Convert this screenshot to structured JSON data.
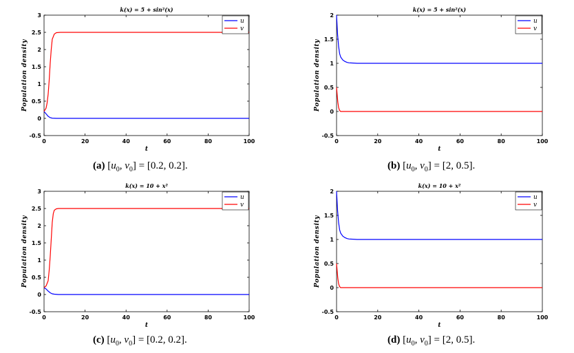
{
  "figure": {
    "captions": [
      {
        "letter": "(a)",
        "u_label": "u",
        "v_label": "v",
        "sub": "0",
        "lhs_rest": "] = [0.2, 0.2]."
      },
      {
        "letter": "(b)",
        "u_label": "u",
        "v_label": "v",
        "sub": "0",
        "lhs_rest": "] = [2, 0.5]."
      },
      {
        "letter": "(c)",
        "u_label": "u",
        "v_label": "v",
        "sub": "0",
        "lhs_rest": "] = [0.2, 0.2]."
      },
      {
        "letter": "(d)",
        "u_label": "u",
        "v_label": "v",
        "sub": "0",
        "lhs_rest": "] = [2, 0.5]."
      }
    ]
  },
  "colors": {
    "u": "#0000ff",
    "v": "#ff0000",
    "axis": "#000000"
  },
  "chart_data": [
    {
      "type": "line",
      "title": "k(x) = 5 + sin²(x)",
      "xlabel": "t",
      "ylabel": "Population density",
      "xlim": [
        0,
        100
      ],
      "ylim": [
        -0.5,
        3
      ],
      "xticks": [
        "0",
        "20",
        "40",
        "60",
        "80",
        "100"
      ],
      "yticks": [
        "-0.5",
        "0",
        "0.5",
        "1",
        "1.5",
        "2",
        "2.5",
        "3"
      ],
      "legend": {
        "position": "top-right",
        "entries": [
          "u",
          "v"
        ]
      },
      "series": [
        {
          "name": "u",
          "x": [
            0,
            1,
            2,
            3,
            4,
            6,
            10,
            50,
            100
          ],
          "y": [
            0.2,
            0.13,
            0.06,
            0.02,
            0.005,
            0.0,
            0.0,
            0.0,
            0.0
          ]
        },
        {
          "name": "v",
          "x": [
            0,
            1,
            1.5,
            2,
            2.5,
            3,
            3.5,
            4,
            5,
            6,
            8,
            10,
            50,
            100
          ],
          "y": [
            0.2,
            0.3,
            0.45,
            0.7,
            1.1,
            1.6,
            2.0,
            2.3,
            2.45,
            2.49,
            2.5,
            2.5,
            2.5,
            2.5
          ]
        }
      ]
    },
    {
      "type": "line",
      "title": "k(x) = 5 + sin²(x)",
      "xlabel": "t",
      "ylabel": "Population density",
      "xlim": [
        0,
        100
      ],
      "ylim": [
        -0.5,
        2
      ],
      "xticks": [
        "0",
        "20",
        "40",
        "60",
        "80",
        "100"
      ],
      "yticks": [
        "-0.5",
        "0",
        "0.5",
        "1",
        "1.5",
        "2"
      ],
      "legend": {
        "position": "top-right",
        "entries": [
          "u",
          "v"
        ]
      },
      "series": [
        {
          "name": "u",
          "x": [
            0,
            0.5,
            1,
            1.5,
            2,
            3,
            4,
            5,
            6,
            8,
            10,
            15,
            20,
            50,
            100
          ],
          "y": [
            2,
            1.6,
            1.35,
            1.2,
            1.13,
            1.07,
            1.04,
            1.02,
            1.01,
            1.005,
            1.0,
            1.0,
            1.0,
            1.0,
            1.0
          ]
        },
        {
          "name": "v",
          "x": [
            0,
            0.3,
            0.6,
            1,
            1.5,
            2,
            3,
            10,
            50,
            100
          ],
          "y": [
            0.5,
            0.35,
            0.2,
            0.08,
            0.02,
            0.0,
            0.0,
            0.0,
            0.0,
            0.0
          ]
        }
      ]
    },
    {
      "type": "line",
      "title": "k(x) = 10 + x²",
      "xlabel": "t",
      "ylabel": "Population density",
      "xlim": [
        0,
        100
      ],
      "ylim": [
        -0.5,
        3
      ],
      "xticks": [
        "0",
        "20",
        "40",
        "60",
        "80",
        "100"
      ],
      "yticks": [
        "-0.5",
        "0",
        "0.5",
        "1",
        "1.5",
        "2",
        "2.5",
        "3"
      ],
      "legend": {
        "position": "top-right",
        "entries": [
          "u",
          "v"
        ]
      },
      "series": [
        {
          "name": "u",
          "x": [
            0,
            1,
            2,
            3,
            4,
            5,
            7,
            10,
            50,
            100
          ],
          "y": [
            0.2,
            0.16,
            0.1,
            0.05,
            0.02,
            0.01,
            0.0,
            0.0,
            0.0,
            0.0
          ]
        },
        {
          "name": "v",
          "x": [
            0,
            1,
            2,
            2.5,
            3,
            3.5,
            4,
            4.5,
            5,
            6,
            7,
            8,
            10,
            50,
            100
          ],
          "y": [
            0.2,
            0.25,
            0.4,
            0.7,
            1.1,
            1.6,
            2.1,
            2.35,
            2.45,
            2.49,
            2.5,
            2.5,
            2.5,
            2.5,
            2.5
          ]
        }
      ]
    },
    {
      "type": "line",
      "title": "k(x) = 10 + x²",
      "xlabel": "t",
      "ylabel": "Population density",
      "xlim": [
        0,
        100
      ],
      "ylim": [
        -0.5,
        2
      ],
      "xticks": [
        "0",
        "20",
        "40",
        "60",
        "80",
        "100"
      ],
      "yticks": [
        "-0.5",
        "0",
        "0.5",
        "1",
        "1.5",
        "2"
      ],
      "legend": {
        "position": "top-right",
        "entries": [
          "u",
          "v"
        ]
      },
      "series": [
        {
          "name": "u",
          "x": [
            0,
            0.5,
            1,
            1.5,
            2,
            3,
            4,
            5,
            6,
            8,
            10,
            15,
            20,
            50,
            100
          ],
          "y": [
            2,
            1.6,
            1.35,
            1.2,
            1.13,
            1.07,
            1.04,
            1.02,
            1.01,
            1.005,
            1.0,
            1.0,
            1.0,
            1.0,
            1.0
          ]
        },
        {
          "name": "v",
          "x": [
            0,
            0.3,
            0.6,
            1,
            1.5,
            2,
            3,
            10,
            50,
            100
          ],
          "y": [
            0.5,
            0.35,
            0.2,
            0.08,
            0.02,
            0.0,
            0.0,
            0.0,
            0.0,
            0.0
          ]
        }
      ]
    }
  ]
}
